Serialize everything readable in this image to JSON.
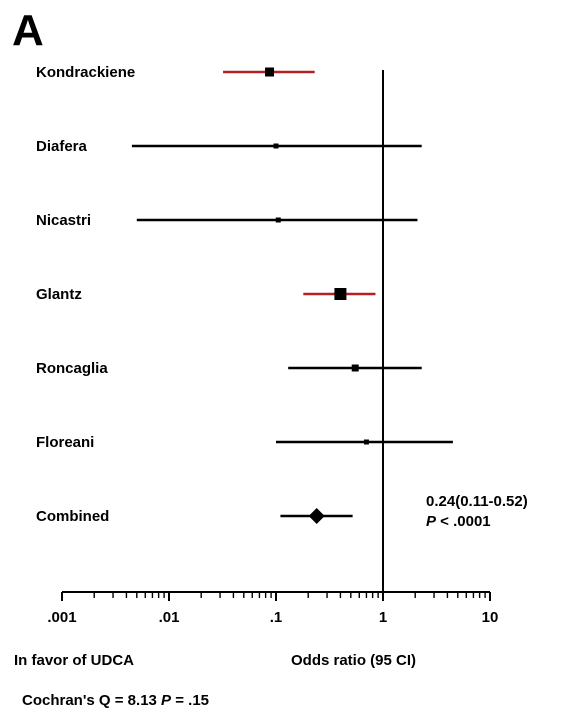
{
  "panel_label": "A",
  "chart_data": {
    "type": "forest",
    "xscale": "log",
    "xlim": [
      0.001,
      10
    ],
    "xticks": [
      {
        "value": 0.001,
        "label": ".001"
      },
      {
        "value": 0.01,
        "label": ".01"
      },
      {
        "value": 0.1,
        "label": ".1"
      },
      {
        "value": 1,
        "label": "1"
      },
      {
        "value": 10,
        "label": "10"
      }
    ],
    "reference_line": 1,
    "xlabel": "Odds ratio (95 CI)",
    "favor_label": "In favor of UDCA",
    "studies": [
      {
        "name": "Kondrackiene",
        "estimate": 0.087,
        "lower": 0.032,
        "upper": 0.23,
        "ci_color": "#b22222",
        "marker": "square",
        "marker_size": 9
      },
      {
        "name": "Diafera",
        "estimate": 0.1,
        "lower": 0.0045,
        "upper": 2.3,
        "ci_color": "#000000",
        "marker": "square",
        "marker_size": 5
      },
      {
        "name": "Nicastri",
        "estimate": 0.105,
        "lower": 0.005,
        "upper": 2.1,
        "ci_color": "#000000",
        "marker": "square",
        "marker_size": 5
      },
      {
        "name": "Glantz",
        "estimate": 0.4,
        "lower": 0.18,
        "upper": 0.85,
        "ci_color": "#b22222",
        "marker": "square",
        "marker_size": 12
      },
      {
        "name": "Roncaglia",
        "estimate": 0.55,
        "lower": 0.13,
        "upper": 2.3,
        "ci_color": "#000000",
        "marker": "square",
        "marker_size": 7
      },
      {
        "name": "Floreani",
        "estimate": 0.7,
        "lower": 0.1,
        "upper": 4.5,
        "ci_color": "#000000",
        "marker": "square",
        "marker_size": 5
      },
      {
        "name": "Combined",
        "estimate": 0.24,
        "lower": 0.11,
        "upper": 0.52,
        "ci_color": "#000000",
        "marker": "diamond",
        "marker_size": 16
      }
    ],
    "combined_text": "0.24(0.11-0.52)",
    "combined_p_symbol": "P",
    "combined_p_value": " < .0001",
    "heterogeneity_prefix": "Cochran's Q = 8.13 ",
    "heterogeneity_p_symbol": "P",
    "heterogeneity_p_value": " = .15"
  }
}
